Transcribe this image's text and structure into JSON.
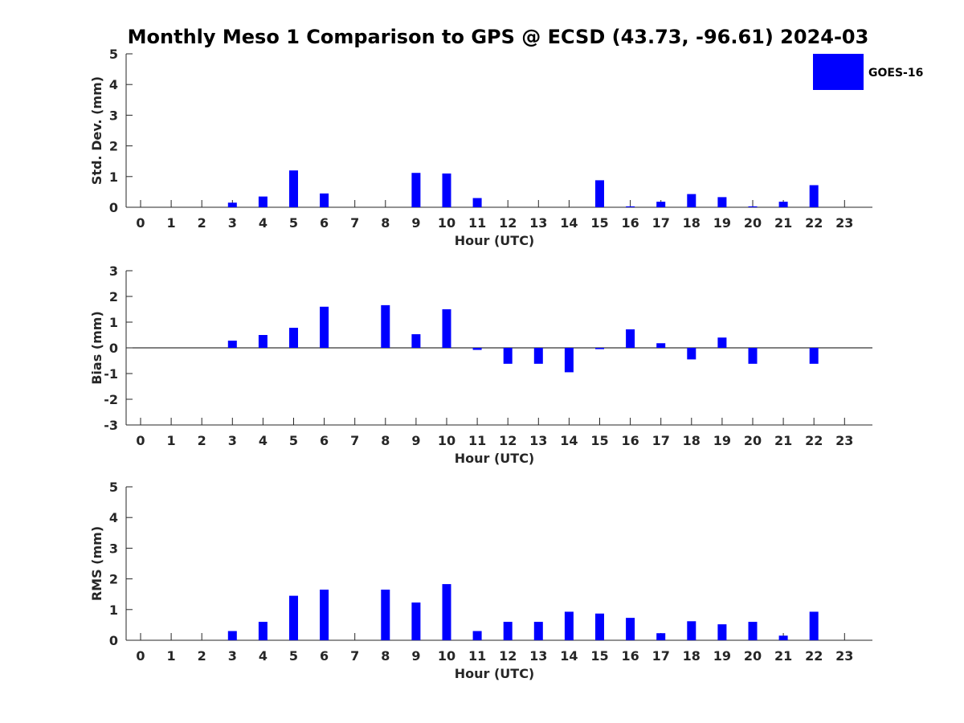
{
  "title": "Monthly Meso 1 Comparison to GPS @ ECSD (43.73, -96.61) 2024-03",
  "legend": {
    "label": "GOES-16",
    "color": "#0000ff",
    "placement": "top-right"
  },
  "colors": {
    "bar": "#0000ff",
    "axis": "#262626"
  },
  "chart_data": [
    {
      "type": "bar",
      "ylabel": "Std. Dev. (mm)",
      "xlabel": "Hour (UTC)",
      "ylim": [
        0,
        5
      ],
      "yticks": [
        0,
        1,
        2,
        3,
        4,
        5
      ],
      "categories": [
        "0",
        "1",
        "2",
        "3",
        "4",
        "5",
        "6",
        "7",
        "8",
        "9",
        "10",
        "11",
        "12",
        "13",
        "14",
        "15",
        "16",
        "17",
        "18",
        "19",
        "20",
        "21",
        "22",
        "23"
      ],
      "series": [
        {
          "name": "GOES-16",
          "values": [
            null,
            null,
            null,
            0.15,
            0.35,
            1.2,
            0.45,
            null,
            null,
            1.12,
            1.1,
            0.3,
            null,
            null,
            null,
            0.88,
            0.03,
            0.18,
            0.43,
            0.33,
            0.03,
            0.18,
            0.72,
            null
          ]
        }
      ]
    },
    {
      "type": "bar",
      "ylabel": "Bias (mm)",
      "xlabel": "Hour (UTC)",
      "ylim": [
        -3,
        3
      ],
      "yticks": [
        -3,
        -2,
        -1,
        0,
        1,
        2,
        3
      ],
      "zero_line": true,
      "categories": [
        "0",
        "1",
        "2",
        "3",
        "4",
        "5",
        "6",
        "7",
        "8",
        "9",
        "10",
        "11",
        "12",
        "13",
        "14",
        "15",
        "16",
        "17",
        "18",
        "19",
        "20",
        "21",
        "22",
        "23"
      ],
      "series": [
        {
          "name": "GOES-16",
          "values": [
            null,
            null,
            null,
            0.28,
            0.5,
            0.78,
            1.6,
            null,
            1.66,
            0.53,
            1.5,
            -0.08,
            -0.62,
            -0.62,
            -0.95,
            -0.05,
            0.72,
            0.18,
            -0.45,
            0.4,
            -0.62,
            null,
            -0.62,
            null
          ]
        }
      ]
    },
    {
      "type": "bar",
      "ylabel": "RMS (mm)",
      "xlabel": "Hour (UTC)",
      "ylim": [
        0,
        5
      ],
      "yticks": [
        0,
        1,
        2,
        3,
        4,
        5
      ],
      "categories": [
        "0",
        "1",
        "2",
        "3",
        "4",
        "5",
        "6",
        "7",
        "8",
        "9",
        "10",
        "11",
        "12",
        "13",
        "14",
        "15",
        "16",
        "17",
        "18",
        "19",
        "20",
        "21",
        "22",
        "23"
      ],
      "series": [
        {
          "name": "GOES-16",
          "values": [
            null,
            null,
            null,
            0.3,
            0.6,
            1.45,
            1.65,
            null,
            1.65,
            1.23,
            1.83,
            0.3,
            0.6,
            0.6,
            0.93,
            0.87,
            0.73,
            0.23,
            0.62,
            0.52,
            0.6,
            0.15,
            0.93,
            null
          ]
        }
      ]
    }
  ]
}
